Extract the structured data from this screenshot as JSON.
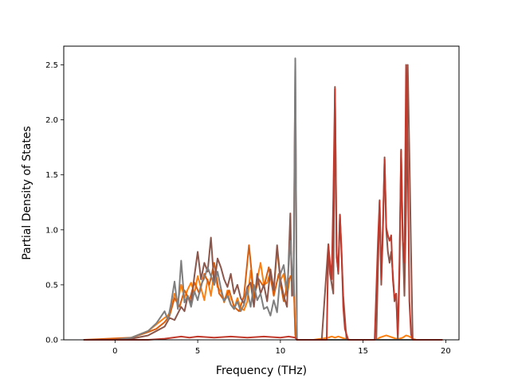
{
  "chart_data": {
    "type": "line",
    "title": "",
    "xlabel": "Frequency (THz)",
    "ylabel": "Partial Density of States",
    "xlim": [
      -3.1,
      20.8
    ],
    "ylim": [
      0,
      2.67
    ],
    "xticks": [
      0,
      5,
      10,
      15,
      20
    ],
    "yticks": [
      0.0,
      0.5,
      1.0,
      1.5,
      2.0,
      2.5
    ],
    "xtick_labels": [
      "0",
      "5",
      "10",
      "15",
      "20"
    ],
    "ytick_labels": [
      "0.0",
      "0.5",
      "1.0",
      "1.5",
      "2.0",
      "2.5"
    ],
    "grid": false,
    "legend": "none",
    "series": [
      {
        "color": "#ff7f0e",
        "x": [
          -1.9,
          0,
          1.0,
          2.0,
          2.5,
          3.0,
          3.2,
          3.4,
          3.6,
          3.8,
          4.0,
          4.2,
          4.4,
          4.6,
          4.8,
          5.0,
          5.2,
          5.4,
          5.6,
          5.8,
          6.0,
          6.2,
          6.4,
          6.6,
          6.8,
          7.0,
          7.2,
          7.4,
          7.6,
          7.8,
          8.0,
          8.2,
          8.4,
          8.6,
          8.8,
          9.0,
          9.2,
          9.4,
          9.6,
          9.8,
          10.0,
          10.2,
          10.4,
          10.6,
          10.8,
          10.9,
          11.0,
          12.0,
          12.9,
          13.1,
          13.3,
          13.5,
          13.7,
          13.9,
          14.2,
          15.8,
          16.0,
          16.2,
          16.4,
          16.6,
          16.8,
          17.0,
          17.2,
          17.4,
          17.6,
          17.8,
          18.0,
          18.2,
          19.8
        ],
        "y": [
          0.0,
          0.0,
          0.02,
          0.08,
          0.14,
          0.2,
          0.22,
          0.28,
          0.42,
          0.35,
          0.5,
          0.38,
          0.46,
          0.52,
          0.42,
          0.58,
          0.47,
          0.36,
          0.55,
          0.4,
          0.62,
          0.48,
          0.44,
          0.34,
          0.45,
          0.32,
          0.28,
          0.38,
          0.29,
          0.27,
          0.35,
          0.63,
          0.38,
          0.55,
          0.7,
          0.5,
          0.52,
          0.62,
          0.45,
          0.82,
          0.54,
          0.6,
          0.4,
          0.58,
          0.56,
          0.04,
          0.0,
          0.0,
          0.02,
          0.03,
          0.02,
          0.03,
          0.02,
          0.01,
          0.0,
          0.0,
          0.02,
          0.03,
          0.04,
          0.03,
          0.02,
          0.01,
          0.01,
          0.02,
          0.04,
          0.03,
          0.01,
          0.0,
          0.0
        ]
      },
      {
        "color": "#d95f0e",
        "x": [
          -1.9,
          1.0,
          2.0,
          2.5,
          3.0,
          3.3,
          3.6,
          3.9,
          4.2,
          4.5,
          4.8,
          5.1,
          5.4,
          5.7,
          6.0,
          6.3,
          6.6,
          6.9,
          7.2,
          7.5,
          7.8,
          8.1,
          8.4,
          8.7,
          9.0,
          9.3,
          9.6,
          9.9,
          10.2,
          10.5,
          10.8,
          10.9,
          11.0,
          19.8
        ],
        "y": [
          0.0,
          0.02,
          0.07,
          0.1,
          0.16,
          0.22,
          0.38,
          0.3,
          0.45,
          0.36,
          0.52,
          0.42,
          0.6,
          0.5,
          0.7,
          0.42,
          0.36,
          0.45,
          0.3,
          0.26,
          0.4,
          0.86,
          0.4,
          0.55,
          0.48,
          0.66,
          0.4,
          0.6,
          0.35,
          0.55,
          0.6,
          0.05,
          0.0,
          0.0
        ]
      },
      {
        "color": "#8c564b",
        "x": [
          -1.9,
          0,
          1.0,
          2.0,
          2.5,
          3.0,
          3.3,
          3.6,
          3.8,
          4.0,
          4.2,
          4.4,
          4.6,
          4.8,
          5.0,
          5.2,
          5.4,
          5.6,
          5.8,
          6.0,
          6.2,
          6.4,
          6.6,
          6.8,
          7.0,
          7.2,
          7.4,
          7.6,
          7.8,
          8.0,
          8.2,
          8.4,
          8.6,
          8.8,
          9.0,
          9.2,
          9.4,
          9.6,
          9.8,
          10.0,
          10.2,
          10.4,
          10.6,
          10.7,
          10.8,
          10.9,
          11.0,
          12.5,
          12.9,
          13.0,
          13.2,
          13.3,
          13.4,
          13.5,
          13.6,
          13.8,
          14.0,
          15.8,
          16.0,
          16.1,
          16.2,
          16.3,
          16.4,
          16.5,
          16.6,
          16.7,
          16.8,
          16.9,
          17.0,
          17.1,
          17.2,
          17.3,
          17.4,
          17.5,
          17.6,
          17.7,
          17.8,
          17.9,
          18.0,
          18.2,
          19.8
        ],
        "y": [
          0.0,
          0.0,
          0.01,
          0.04,
          0.08,
          0.12,
          0.2,
          0.18,
          0.24,
          0.3,
          0.26,
          0.4,
          0.33,
          0.58,
          0.8,
          0.55,
          0.7,
          0.62,
          0.93,
          0.5,
          0.74,
          0.66,
          0.55,
          0.48,
          0.6,
          0.42,
          0.5,
          0.38,
          0.33,
          0.48,
          0.52,
          0.3,
          0.6,
          0.42,
          0.5,
          0.35,
          0.64,
          0.45,
          0.86,
          0.55,
          0.4,
          0.3,
          1.15,
          0.4,
          0.6,
          2.55,
          0.0,
          0.0,
          0.87,
          0.6,
          0.42,
          2.3,
          0.8,
          0.6,
          1.14,
          0.4,
          0.0,
          0.0,
          1.27,
          0.5,
          1.0,
          1.66,
          1.0,
          0.8,
          0.7,
          0.8,
          0.6,
          0.35,
          0.42,
          0.0,
          0.6,
          1.73,
          0.9,
          0.4,
          1.2,
          2.5,
          1.7,
          0.8,
          0.0,
          0.0,
          0.0
        ]
      },
      {
        "color": "#7f7f7f",
        "x": [
          -1.9,
          0,
          1.0,
          2.0,
          2.5,
          3.0,
          3.2,
          3.4,
          3.6,
          3.8,
          4.0,
          4.2,
          4.4,
          4.6,
          4.8,
          5.0,
          5.2,
          5.4,
          5.6,
          5.8,
          6.0,
          6.2,
          6.4,
          6.6,
          6.8,
          7.0,
          7.2,
          7.4,
          7.6,
          7.8,
          8.0,
          8.2,
          8.4,
          8.6,
          8.8,
          9.0,
          9.2,
          9.4,
          9.6,
          9.8,
          10.0,
          10.2,
          10.4,
          10.6,
          10.8,
          10.9,
          11.0,
          19.8
        ],
        "y": [
          0.0,
          0.0,
          0.02,
          0.08,
          0.15,
          0.26,
          0.18,
          0.34,
          0.53,
          0.28,
          0.72,
          0.34,
          0.4,
          0.3,
          0.44,
          0.36,
          0.5,
          0.56,
          0.66,
          0.58,
          0.5,
          0.62,
          0.47,
          0.35,
          0.4,
          0.32,
          0.28,
          0.35,
          0.26,
          0.32,
          0.45,
          0.3,
          0.5,
          0.36,
          0.42,
          0.28,
          0.3,
          0.22,
          0.36,
          0.25,
          0.6,
          0.68,
          0.45,
          0.9,
          0.4,
          2.56,
          0.0,
          0.0
        ]
      },
      {
        "color": "#c0392b",
        "x": [
          -1.9,
          0,
          2.0,
          3.0,
          3.5,
          4.0,
          4.5,
          5.0,
          6.0,
          7.0,
          8.0,
          9.0,
          10.0,
          10.5,
          10.9,
          11.0,
          12.8,
          12.9,
          13.0,
          13.1,
          13.2,
          13.3,
          13.4,
          13.5,
          13.6,
          13.7,
          13.8,
          13.9,
          14.1,
          15.7,
          15.9,
          16.0,
          16.1,
          16.2,
          16.3,
          16.4,
          16.5,
          16.6,
          16.7,
          16.8,
          16.9,
          17.0,
          17.1,
          17.2,
          17.3,
          17.4,
          17.5,
          17.6,
          17.7,
          17.8,
          17.9,
          18.0,
          18.1,
          19.8
        ],
        "y": [
          0.0,
          0.0,
          0.0,
          0.01,
          0.02,
          0.03,
          0.02,
          0.03,
          0.02,
          0.03,
          0.02,
          0.03,
          0.02,
          0.03,
          0.02,
          0.0,
          0.0,
          0.86,
          0.7,
          0.55,
          1.3,
          2.28,
          0.75,
          0.62,
          1.13,
          0.8,
          0.3,
          0.1,
          0.0,
          0.0,
          0.9,
          1.26,
          0.55,
          1.05,
          1.64,
          1.02,
          0.95,
          0.9,
          0.95,
          0.55,
          0.38,
          0.42,
          0.05,
          0.7,
          1.72,
          0.9,
          0.7,
          2.5,
          1.65,
          0.35,
          0.05,
          0.0,
          0.0,
          0.0
        ]
      }
    ]
  }
}
